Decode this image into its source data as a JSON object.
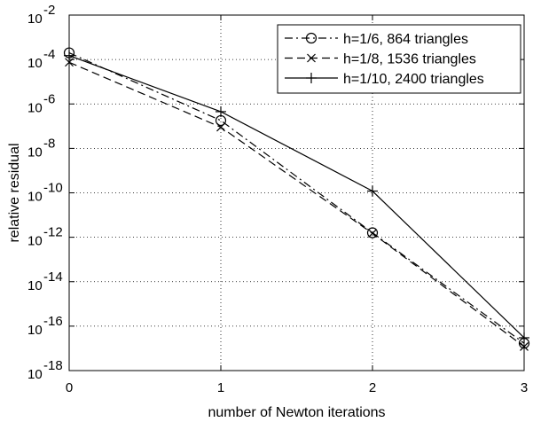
{
  "chart_data": {
    "type": "line",
    "title": "",
    "xlabel": "number of Newton iterations",
    "ylabel": "relative residual",
    "x": [
      0,
      1,
      2,
      3
    ],
    "xlim": [
      0,
      3
    ],
    "ylim": [
      1e-18,
      0.01
    ],
    "yscale": "log",
    "grid": true,
    "legend_position": "top-right",
    "x_ticks": [
      0,
      1,
      2,
      3
    ],
    "x_tick_labels": [
      "0",
      "1",
      "2",
      "3"
    ],
    "y_ticks": [
      1e-18,
      1e-16,
      1e-14,
      1e-12,
      1e-10,
      1e-08,
      1e-06,
      0.0001,
      0.01
    ],
    "y_tick_labels": [
      {
        "base": "10",
        "exp": "-18"
      },
      {
        "base": "10",
        "exp": "-16"
      },
      {
        "base": "10",
        "exp": "-14"
      },
      {
        "base": "10",
        "exp": "-12"
      },
      {
        "base": "10",
        "exp": "-10"
      },
      {
        "base": "10",
        "exp": "-8"
      },
      {
        "base": "10",
        "exp": "-6"
      },
      {
        "base": "10",
        "exp": "-4"
      },
      {
        "base": "10",
        "exp": "-2"
      }
    ],
    "series": [
      {
        "name": "h=1/6, 864 triangles",
        "values": [
          0.0002,
          1.8e-07,
          1.6e-12,
          1.7e-17
        ],
        "line": "dashdot",
        "marker": "circle",
        "color": "#000000"
      },
      {
        "name": "h=1/8, 1536 triangles",
        "values": [
          7.5e-05,
          9e-08,
          1.5e-12,
          1.2e-17
        ],
        "line": "dashed",
        "marker": "x",
        "color": "#000000"
      },
      {
        "name": "h=1/10, 2400 triangles",
        "values": [
          0.00015,
          4.5e-07,
          1.2e-10,
          3e-17
        ],
        "line": "solid",
        "marker": "plus",
        "color": "#000000"
      }
    ]
  }
}
